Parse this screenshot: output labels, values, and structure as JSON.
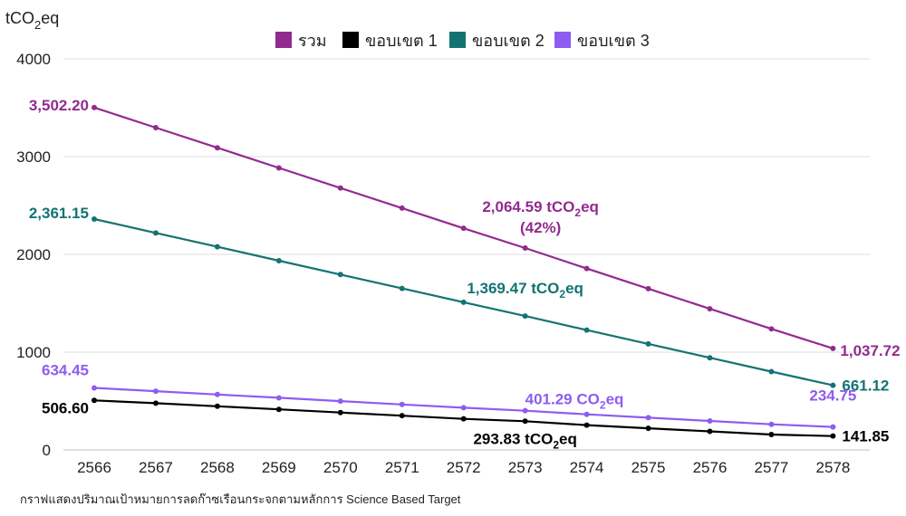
{
  "chart_data": {
    "type": "line",
    "ylabel": "tCO",
    "ylabel_sub": "2",
    "ylabel_tail": "eq",
    "ylim": [
      0,
      4000
    ],
    "yticks": [
      0,
      1000,
      2000,
      3000,
      4000
    ],
    "grid": true,
    "legend_position": "top",
    "x": [
      "2566",
      "2567",
      "2568",
      "2569",
      "2570",
      "2571",
      "2572",
      "2573",
      "2574",
      "2575",
      "2576",
      "2577",
      "2578"
    ],
    "series": [
      {
        "name": "รวม",
        "color": "#922b8e",
        "values": [
          3502.2,
          3296.35,
          3090.5,
          2884.64,
          2678.79,
          2472.94,
          2267.09,
          2064.59,
          1855.38,
          1649.53,
          1443.68,
          1237.83,
          1037.72
        ]
      },
      {
        "name": "ขอบเขต 1",
        "color": "#000000",
        "values": [
          506.6,
          477.67,
          446.53,
          414.4,
          382.27,
          350.13,
          318.0,
          293.83,
          253.73,
          221.6,
          189.46,
          157.33,
          141.85
        ]
      },
      {
        "name": "ขอบเขต 2",
        "color": "#137373",
        "values": [
          2361.15,
          2219.28,
          2077.41,
          1935.54,
          1793.67,
          1651.8,
          1509.93,
          1369.47,
          1226.19,
          1084.32,
          942.45,
          800.58,
          661.12
        ]
      },
      {
        "name": "ขอบเขต 3",
        "color": "#8e5cf0",
        "values": [
          634.45,
          600.6,
          566.75,
          532.9,
          499.05,
          465.2,
          431.35,
          401.29,
          363.64,
          329.79,
          295.94,
          262.09,
          234.75
        ]
      }
    ],
    "annotations": [
      {
        "series": 0,
        "index": 0,
        "text": "3,502.20"
      },
      {
        "series": 0,
        "index": 12,
        "text": "1,037.72"
      },
      {
        "series": 0,
        "index": 7,
        "text": "2,064.59 tCO",
        "sub": "2",
        "tail": "eq",
        "line2": "(42%)"
      },
      {
        "series": 2,
        "index": 0,
        "text": "2,361.15"
      },
      {
        "series": 2,
        "index": 12,
        "text": "661.12"
      },
      {
        "series": 2,
        "index": 7,
        "text": "1,369.47 tCO",
        "sub": "2",
        "tail": "eq"
      },
      {
        "series": 3,
        "index": 0,
        "text": "634.45"
      },
      {
        "series": 3,
        "index": 12,
        "text": "234.75"
      },
      {
        "series": 3,
        "index": 7,
        "text": "401.29 CO",
        "sub": "2",
        "tail": "eq"
      },
      {
        "series": 1,
        "index": 0,
        "text": "506.60"
      },
      {
        "series": 1,
        "index": 12,
        "text": "141.85"
      },
      {
        "series": 1,
        "index": 7,
        "text": "293.83 tCO",
        "sub": "2",
        "tail": "eq"
      }
    ]
  },
  "caption": "กราฟแสดงปริมาณเป้าหมายการลดก๊าซเรือนกระจกตามหลักการ Science Based Target"
}
